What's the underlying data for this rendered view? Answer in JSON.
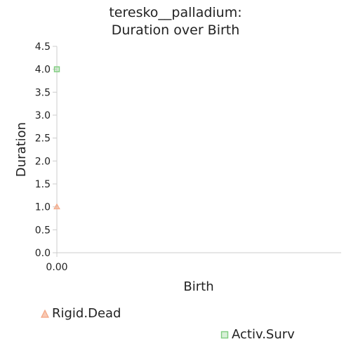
{
  "chart_data": {
    "type": "scatter",
    "title": [
      "teresko__palladium:",
      "Duration over Birth"
    ],
    "xlabel": "Birth",
    "ylabel": "Duration",
    "xlim": [
      0,
      1
    ],
    "ylim": [
      0,
      4.5
    ],
    "y_ticks": [
      "0.0",
      "0.5",
      "1.0",
      "1.5",
      "2.0",
      "2.5",
      "3.0",
      "3.5",
      "4.0",
      "4.5"
    ],
    "x_ticks": [
      "0.00"
    ],
    "grid": false,
    "legend_position": "bottom",
    "series": [
      {
        "name": "Rigid.Dead",
        "marker": "triangle",
        "color": "#f4a582",
        "points": [
          {
            "x": 0,
            "y": 1.0
          }
        ]
      },
      {
        "name": "Activ.Surv",
        "marker": "square",
        "color": "#7fcc7f",
        "points": [
          {
            "x": 0,
            "y": 4.0
          }
        ]
      }
    ]
  }
}
